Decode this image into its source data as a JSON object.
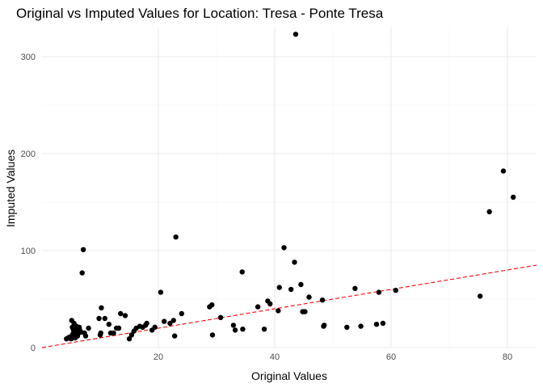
{
  "chart_data": {
    "type": "scatter",
    "title": "Original vs Imputed Values for Location: Tresa - Ponte Tresa",
    "xlabel": "Original Values",
    "ylabel": "Imputed Values",
    "xlim": [
      0,
      85
    ],
    "ylim": [
      0,
      330
    ],
    "x_ticks": [
      20,
      40,
      60,
      80
    ],
    "y_ticks": [
      0,
      100,
      200,
      300
    ],
    "grid": true,
    "reference_line": {
      "type": "y = x",
      "color": "#ff0000",
      "style": "dashed"
    },
    "points": [
      {
        "x": 4.2,
        "y": 9
      },
      {
        "x": 4.5,
        "y": 10
      },
      {
        "x": 4.8,
        "y": 11
      },
      {
        "x": 5.0,
        "y": 9
      },
      {
        "x": 5.1,
        "y": 28
      },
      {
        "x": 5.2,
        "y": 21
      },
      {
        "x": 5.3,
        "y": 14
      },
      {
        "x": 5.4,
        "y": 18
      },
      {
        "x": 5.5,
        "y": 25
      },
      {
        "x": 5.6,
        "y": 13
      },
      {
        "x": 5.7,
        "y": 10
      },
      {
        "x": 5.8,
        "y": 16
      },
      {
        "x": 5.9,
        "y": 22
      },
      {
        "x": 6.0,
        "y": 17
      },
      {
        "x": 6.1,
        "y": 12
      },
      {
        "x": 6.2,
        "y": 19
      },
      {
        "x": 6.3,
        "y": 15
      },
      {
        "x": 6.4,
        "y": 21
      },
      {
        "x": 6.5,
        "y": 18
      },
      {
        "x": 6.7,
        "y": 16
      },
      {
        "x": 6.9,
        "y": 77
      },
      {
        "x": 7.1,
        "y": 101
      },
      {
        "x": 7.3,
        "y": 15
      },
      {
        "x": 7.5,
        "y": 12
      },
      {
        "x": 8.0,
        "y": 20
      },
      {
        "x": 9.8,
        "y": 30
      },
      {
        "x": 10.2,
        "y": 41
      },
      {
        "x": 10.0,
        "y": 13
      },
      {
        "x": 10.1,
        "y": 15
      },
      {
        "x": 10.8,
        "y": 30
      },
      {
        "x": 11.5,
        "y": 24
      },
      {
        "x": 11.8,
        "y": 15
      },
      {
        "x": 12.3,
        "y": 15
      },
      {
        "x": 12.8,
        "y": 20
      },
      {
        "x": 13.2,
        "y": 20
      },
      {
        "x": 13.5,
        "y": 35
      },
      {
        "x": 14.3,
        "y": 33
      },
      {
        "x": 15.0,
        "y": 9
      },
      {
        "x": 15.4,
        "y": 13
      },
      {
        "x": 15.8,
        "y": 17
      },
      {
        "x": 16.2,
        "y": 20
      },
      {
        "x": 16.8,
        "y": 22
      },
      {
        "x": 17.3,
        "y": 21
      },
      {
        "x": 17.8,
        "y": 23
      },
      {
        "x": 18.0,
        "y": 25
      },
      {
        "x": 18.9,
        "y": 18
      },
      {
        "x": 19.4,
        "y": 21
      },
      {
        "x": 20.4,
        "y": 57
      },
      {
        "x": 21.0,
        "y": 27
      },
      {
        "x": 22.0,
        "y": 25
      },
      {
        "x": 22.6,
        "y": 28
      },
      {
        "x": 22.8,
        "y": 12
      },
      {
        "x": 23.0,
        "y": 114
      },
      {
        "x": 24.0,
        "y": 35
      },
      {
        "x": 28.8,
        "y": 42
      },
      {
        "x": 29.2,
        "y": 44
      },
      {
        "x": 29.3,
        "y": 13
      },
      {
        "x": 30.7,
        "y": 31
      },
      {
        "x": 32.9,
        "y": 23
      },
      {
        "x": 33.2,
        "y": 18
      },
      {
        "x": 34.4,
        "y": 78
      },
      {
        "x": 34.5,
        "y": 19
      },
      {
        "x": 37.1,
        "y": 42
      },
      {
        "x": 38.2,
        "y": 19
      },
      {
        "x": 38.8,
        "y": 48
      },
      {
        "x": 39.2,
        "y": 45
      },
      {
        "x": 40.6,
        "y": 38
      },
      {
        "x": 40.8,
        "y": 62
      },
      {
        "x": 41.6,
        "y": 103
      },
      {
        "x": 42.8,
        "y": 60
      },
      {
        "x": 43.4,
        "y": 88
      },
      {
        "x": 43.6,
        "y": 323
      },
      {
        "x": 44.5,
        "y": 65
      },
      {
        "x": 44.8,
        "y": 37
      },
      {
        "x": 45.2,
        "y": 37
      },
      {
        "x": 45.9,
        "y": 52
      },
      {
        "x": 48.2,
        "y": 49
      },
      {
        "x": 48.4,
        "y": 22
      },
      {
        "x": 48.5,
        "y": 23
      },
      {
        "x": 52.4,
        "y": 21
      },
      {
        "x": 53.8,
        "y": 61
      },
      {
        "x": 54.8,
        "y": 22
      },
      {
        "x": 57.5,
        "y": 24
      },
      {
        "x": 57.9,
        "y": 57
      },
      {
        "x": 58.6,
        "y": 25
      },
      {
        "x": 60.8,
        "y": 59
      },
      {
        "x": 75.3,
        "y": 53
      },
      {
        "x": 76.9,
        "y": 140
      },
      {
        "x": 79.3,
        "y": 182
      },
      {
        "x": 81.0,
        "y": 155
      }
    ]
  }
}
